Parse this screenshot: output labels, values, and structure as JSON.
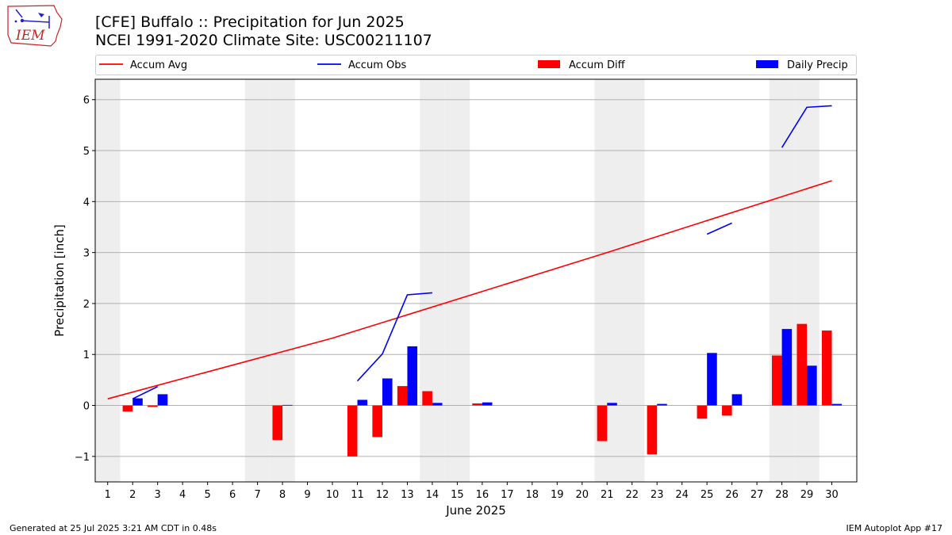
{
  "header": {
    "title_line1": "[CFE] Buffalo :: Precipitation for Jun 2025",
    "title_line2": "NCEI 1991-2020 Climate Site: USC00211107",
    "logo_text": "IEM"
  },
  "footer": {
    "generated": "Generated at 25 Jul 2025 3:21 AM CDT in 0.48s",
    "app": "IEM Autoplot App #17"
  },
  "colors": {
    "avg": "#ff0000",
    "obs": "#0000ff",
    "diff": "#ff0000",
    "daily": "#0000ff",
    "weekend": "#eeeeee",
    "grid": "#b0b0b0"
  },
  "chart_data": {
    "type": "bar",
    "xlabel": "June 2025",
    "ylabel": "Precipitation [inch]",
    "xlim": [
      0.5,
      31.0
    ],
    "ylim": [
      -1.5,
      6.4
    ],
    "yticks": [
      -1,
      0,
      1,
      2,
      3,
      4,
      5,
      6
    ],
    "ytick_labels": [
      "−1",
      "0",
      "1",
      "2",
      "3",
      "4",
      "5",
      "6"
    ],
    "days": [
      1,
      2,
      3,
      4,
      5,
      6,
      7,
      8,
      9,
      10,
      11,
      12,
      13,
      14,
      15,
      16,
      17,
      18,
      19,
      20,
      21,
      22,
      23,
      24,
      25,
      26,
      27,
      28,
      29,
      30
    ],
    "weekend_days": [
      1,
      7,
      8,
      14,
      15,
      21,
      22,
      28,
      29
    ],
    "grid": "horizontal",
    "legend": {
      "placement": "top",
      "entries": [
        {
          "label": "Accum Avg",
          "kind": "line",
          "color": "#ff0000"
        },
        {
          "label": "Accum Obs",
          "kind": "line",
          "color": "#0000ff"
        },
        {
          "label": "Accum Diff",
          "kind": "bar",
          "color": "#ff0000"
        },
        {
          "label": "Daily Precip",
          "kind": "bar",
          "color": "#0000ff"
        }
      ]
    },
    "series": [
      {
        "name": "Accum Avg",
        "type": "line",
        "x": [
          1,
          10,
          21,
          30
        ],
        "values": [
          0.13,
          1.32,
          3.0,
          4.41
        ]
      },
      {
        "name": "Accum Obs",
        "type": "line",
        "segments": [
          {
            "x": [
              2,
              3
            ],
            "values": [
              0.13,
              0.37
            ]
          },
          {
            "x": [
              11,
              12,
              13,
              14
            ],
            "values": [
              0.48,
              1.01,
              2.17,
              2.21
            ]
          },
          {
            "x": [
              25,
              26
            ],
            "values": [
              3.36,
              3.58
            ]
          },
          {
            "x": [
              28,
              29,
              30
            ],
            "values": [
              5.06,
              5.85,
              5.88
            ]
          }
        ]
      },
      {
        "name": "Accum Diff",
        "type": "bar",
        "x": [
          2,
          3,
          8,
          11,
          12,
          13,
          14,
          16,
          21,
          23,
          25,
          26,
          28,
          29,
          30
        ],
        "values": [
          -0.12,
          -0.03,
          -0.68,
          -1.0,
          -0.62,
          0.38,
          0.28,
          0.04,
          -0.7,
          -0.96,
          -0.26,
          -0.2,
          0.98,
          1.6,
          1.47
        ]
      },
      {
        "name": "Daily Precip",
        "type": "bar",
        "x": [
          2,
          3,
          8,
          11,
          12,
          13,
          14,
          16,
          21,
          23,
          25,
          26,
          28,
          29,
          30
        ],
        "values": [
          0.14,
          0.22,
          0.01,
          0.11,
          0.53,
          1.16,
          0.05,
          0.06,
          0.05,
          0.03,
          1.03,
          0.22,
          1.5,
          0.78,
          0.03
        ]
      }
    ]
  }
}
